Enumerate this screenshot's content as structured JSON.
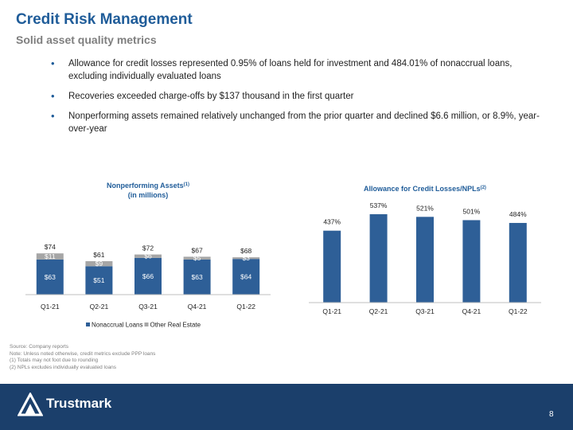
{
  "header": {
    "title": "Credit Risk Management",
    "subtitle": "Solid asset quality metrics"
  },
  "bullets": [
    "Allowance for credit losses represented 0.95% of loans held for investment and 484.01% of nonaccrual loans, excluding individually evaluated loans",
    "Recoveries exceeded charge-offs by $137 thousand in the first quarter",
    "Nonperforming assets remained relatively unchanged from the prior quarter and declined $6.6 million, or 8.9%,  year-over-year"
  ],
  "chart_data": [
    {
      "type": "stacked_bar",
      "title": "Nonperforming Assets",
      "title_note": "(1)",
      "subtitle": "(in millions)",
      "categories": [
        "Q1-21",
        "Q2-21",
        "Q3-21",
        "Q4-21",
        "Q1-22"
      ],
      "series": [
        {
          "name": "Nonaccrual Loans",
          "color": "#2e5f97",
          "values": [
            63,
            51,
            66,
            63,
            64
          ],
          "value_labels": [
            "$63",
            "$51",
            "$66",
            "$63",
            "$64"
          ]
        },
        {
          "name": "Other Real Estate",
          "color": "#a6a6a6",
          "values": [
            11,
            9,
            6,
            5,
            3
          ],
          "value_labels": [
            "$11",
            "$9",
            "$6",
            "$5",
            "$3"
          ]
        }
      ],
      "total_labels": [
        "$74",
        "$61",
        "$72",
        "$67",
        "$68"
      ],
      "ylim": [
        0,
        100
      ],
      "legend": "bottom"
    },
    {
      "type": "bar",
      "title": "Allowance for Credit Losses/NPLs",
      "title_note": "(2)",
      "categories": [
        "Q1-21",
        "Q2-21",
        "Q3-21",
        "Q4-21",
        "Q1-22"
      ],
      "values": [
        437,
        537,
        521,
        501,
        484
      ],
      "value_labels": [
        "437%",
        "537%",
        "521%",
        "501%",
        "484%"
      ],
      "color": "#2e5f97",
      "ylim": [
        0,
        600
      ]
    }
  ],
  "footnotes": [
    "Source: Company reports",
    "Note: Unless noted otherwise, credit metrics exclude PPP loans",
    "(1) Totals may not foot due to rounding",
    "(2) NPLs excludes individually evaluated loans"
  ],
  "footer": {
    "logo": "Trustmark",
    "page": "8"
  }
}
